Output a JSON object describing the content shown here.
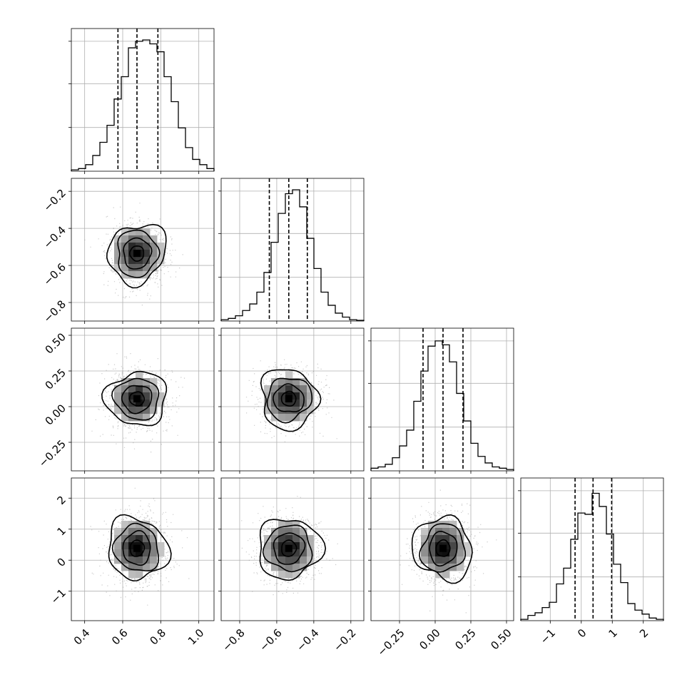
{
  "chart_data": {
    "type": "corner",
    "parameters": [
      {
        "ticks": [
          0.4,
          0.6,
          0.8,
          1.0
        ],
        "tick_labels": [
          "0.4",
          "0.6",
          "0.8",
          "1.0"
        ],
        "range": [
          0.33,
          1.08
        ],
        "quantiles": [
          0.575,
          0.675,
          0.785
        ],
        "mean": 0.675,
        "sd": 0.075
      },
      {
        "ticks": [
          -0.8,
          -0.6,
          -0.4,
          -0.2
        ],
        "tick_labels": [
          "−0.8",
          "−0.6",
          "−0.4",
          "−0.2"
        ],
        "range": [
          -0.9,
          -0.13
        ],
        "quantiles": [
          -0.64,
          -0.535,
          -0.435
        ],
        "mean": -0.535,
        "sd": 0.08
      },
      {
        "ticks": [
          -0.25,
          0.0,
          0.25,
          0.5
        ],
        "tick_labels": [
          "−0.25",
          "0.00",
          "0.25",
          "0.50"
        ],
        "range": [
          -0.45,
          0.55
        ],
        "quantiles": [
          -0.085,
          0.055,
          0.195
        ],
        "mean": 0.055,
        "sd": 0.1
      },
      {
        "ticks": [
          -1,
          0,
          1,
          2
        ],
        "tick_labels": [
          "−1",
          "0",
          "1",
          "2"
        ],
        "range": [
          -1.95,
          2.65
        ],
        "quantiles": [
          -0.2,
          0.38,
          0.98
        ],
        "mean": 0.38,
        "sd": 0.52
      }
    ],
    "histograms": [
      [
        0.01,
        0.02,
        0.05,
        0.12,
        0.22,
        0.35,
        0.55,
        0.72,
        0.94,
        0.99,
        1.0,
        0.97,
        0.91,
        0.72,
        0.53,
        0.33,
        0.18,
        0.09,
        0.05,
        0.02
      ],
      [
        0.01,
        0.02,
        0.04,
        0.08,
        0.13,
        0.22,
        0.37,
        0.6,
        0.82,
        0.97,
        1.0,
        0.87,
        0.63,
        0.4,
        0.22,
        0.12,
        0.06,
        0.03,
        0.01,
        0.005
      ],
      [
        0.02,
        0.03,
        0.05,
        0.1,
        0.19,
        0.31,
        0.53,
        0.76,
        0.95,
        0.99,
        0.96,
        0.83,
        0.59,
        0.38,
        0.21,
        0.11,
        0.06,
        0.03,
        0.02,
        0.01
      ],
      [
        0.01,
        0.04,
        0.06,
        0.1,
        0.14,
        0.28,
        0.4,
        0.62,
        0.82,
        0.81,
        0.97,
        0.87,
        0.66,
        0.43,
        0.29,
        0.13,
        0.08,
        0.05,
        0.02,
        0.01
      ]
    ],
    "grid": true,
    "contour_levels": 4
  }
}
